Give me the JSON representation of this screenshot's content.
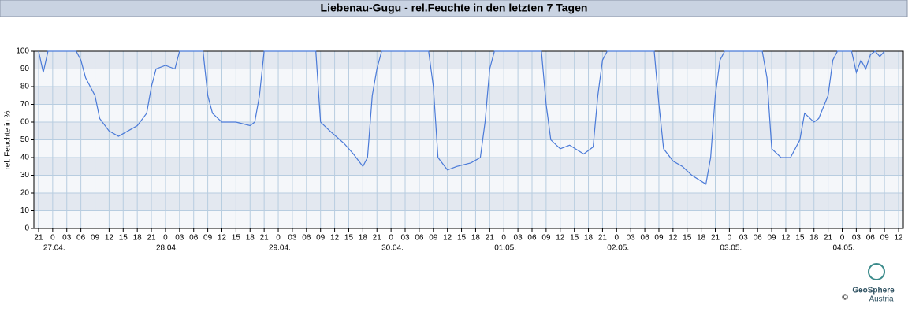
{
  "chart_data": {
    "type": "line",
    "title": "Liebenau-Gugu - rel.Feuchte in den letzten 7 Tagen",
    "y_label": "rel. Feuchte in %",
    "logo_name": "GeoSphere",
    "logo_sub": "Austria",
    "copyright": "©",
    "xlim": [
      -1,
      184
    ],
    "xticks": [
      {
        "value": 0,
        "label": "21"
      },
      {
        "value": 3,
        "label": "0"
      },
      {
        "value": 6,
        "label": "03"
      },
      {
        "value": 9,
        "label": "06"
      },
      {
        "value": 12,
        "label": "09"
      },
      {
        "value": 15,
        "label": "12"
      },
      {
        "value": 18,
        "label": "15"
      },
      {
        "value": 21,
        "label": "18"
      },
      {
        "value": 24,
        "label": "21"
      },
      {
        "value": 27,
        "label": "0"
      },
      {
        "value": 30,
        "label": "03"
      },
      {
        "value": 33,
        "label": "06"
      },
      {
        "value": 36,
        "label": "09"
      },
      {
        "value": 39,
        "label": "12"
      },
      {
        "value": 42,
        "label": "15"
      },
      {
        "value": 45,
        "label": "18"
      },
      {
        "value": 48,
        "label": "21"
      },
      {
        "value": 51,
        "label": "0"
      },
      {
        "value": 54,
        "label": "03"
      },
      {
        "value": 57,
        "label": "06"
      },
      {
        "value": 60,
        "label": "09"
      },
      {
        "value": 63,
        "label": "12"
      },
      {
        "value": 66,
        "label": "15"
      },
      {
        "value": 69,
        "label": "18"
      },
      {
        "value": 72,
        "label": "21"
      },
      {
        "value": 75,
        "label": "0"
      },
      {
        "value": 78,
        "label": "03"
      },
      {
        "value": 81,
        "label": "06"
      },
      {
        "value": 84,
        "label": "09"
      },
      {
        "value": 87,
        "label": "12"
      },
      {
        "value": 90,
        "label": "15"
      },
      {
        "value": 93,
        "label": "18"
      },
      {
        "value": 96,
        "label": "21"
      },
      {
        "value": 99,
        "label": "0"
      },
      {
        "value": 102,
        "label": "03"
      },
      {
        "value": 105,
        "label": "06"
      },
      {
        "value": 108,
        "label": "09"
      },
      {
        "value": 111,
        "label": "12"
      },
      {
        "value": 114,
        "label": "15"
      },
      {
        "value": 117,
        "label": "18"
      },
      {
        "value": 120,
        "label": "21"
      },
      {
        "value": 123,
        "label": "0"
      },
      {
        "value": 126,
        "label": "03"
      },
      {
        "value": 129,
        "label": "06"
      },
      {
        "value": 132,
        "label": "09"
      },
      {
        "value": 135,
        "label": "12"
      },
      {
        "value": 138,
        "label": "15"
      },
      {
        "value": 141,
        "label": "18"
      },
      {
        "value": 144,
        "label": "21"
      },
      {
        "value": 147,
        "label": "0"
      },
      {
        "value": 150,
        "label": "03"
      },
      {
        "value": 153,
        "label": "06"
      },
      {
        "value": 156,
        "label": "09"
      },
      {
        "value": 159,
        "label": "12"
      },
      {
        "value": 162,
        "label": "15"
      },
      {
        "value": 165,
        "label": "18"
      },
      {
        "value": 168,
        "label": "21"
      },
      {
        "value": 171,
        "label": "0"
      },
      {
        "value": 174,
        "label": "03"
      },
      {
        "value": 177,
        "label": "06"
      },
      {
        "value": 180,
        "label": "09"
      },
      {
        "value": 183,
        "label": "12"
      }
    ],
    "day_labels": [
      {
        "value": 3,
        "label": "27.04."
      },
      {
        "value": 27,
        "label": "28.04."
      },
      {
        "value": 51,
        "label": "29.04."
      },
      {
        "value": 75,
        "label": "30.04."
      },
      {
        "value": 99,
        "label": "01.05."
      },
      {
        "value": 123,
        "label": "02.05."
      },
      {
        "value": 147,
        "label": "03.05."
      },
      {
        "value": 171,
        "label": "04.05."
      }
    ],
    "ylim": [
      0,
      100
    ],
    "yticks": [
      0,
      10,
      20,
      30,
      40,
      50,
      60,
      70,
      80,
      90,
      100
    ],
    "grid": true,
    "series": [
      {
        "color": "#4a7ad8",
        "x": [
          0,
          1,
          2,
          8,
          9,
          10,
          12,
          13,
          15,
          17,
          19,
          21,
          23,
          24,
          25,
          27,
          29,
          30,
          35,
          36,
          37,
          39,
          42,
          45,
          46,
          47,
          48,
          59,
          60,
          62,
          65,
          67,
          69,
          70,
          71,
          72,
          73,
          83,
          84,
          85,
          87,
          89,
          92,
          94,
          95,
          96,
          97,
          107,
          108,
          109,
          111,
          113,
          116,
          118,
          119,
          120,
          121,
          131,
          132,
          133,
          135,
          137,
          139,
          142,
          143,
          144,
          145,
          146,
          154,
          155,
          156,
          158,
          160,
          162,
          163,
          165,
          166,
          168,
          169,
          170,
          173,
          174,
          175,
          176,
          177,
          178,
          179,
          180
        ],
        "values": [
          100,
          88,
          100,
          100,
          95,
          85,
          75,
          62,
          55,
          52,
          55,
          58,
          65,
          80,
          90,
          92,
          90,
          100,
          100,
          75,
          65,
          60,
          60,
          58,
          60,
          75,
          100,
          100,
          60,
          55,
          48,
          42,
          35,
          40,
          75,
          90,
          100,
          100,
          80,
          40,
          33,
          35,
          37,
          40,
          60,
          90,
          100,
          100,
          70,
          50,
          45,
          47,
          42,
          46,
          75,
          95,
          100,
          100,
          70,
          45,
          38,
          35,
          30,
          25,
          40,
          75,
          95,
          100,
          100,
          85,
          45,
          40,
          40,
          50,
          65,
          60,
          62,
          75,
          95,
          100,
          100,
          88,
          95,
          90,
          98,
          100,
          97,
          100
        ]
      }
    ]
  }
}
